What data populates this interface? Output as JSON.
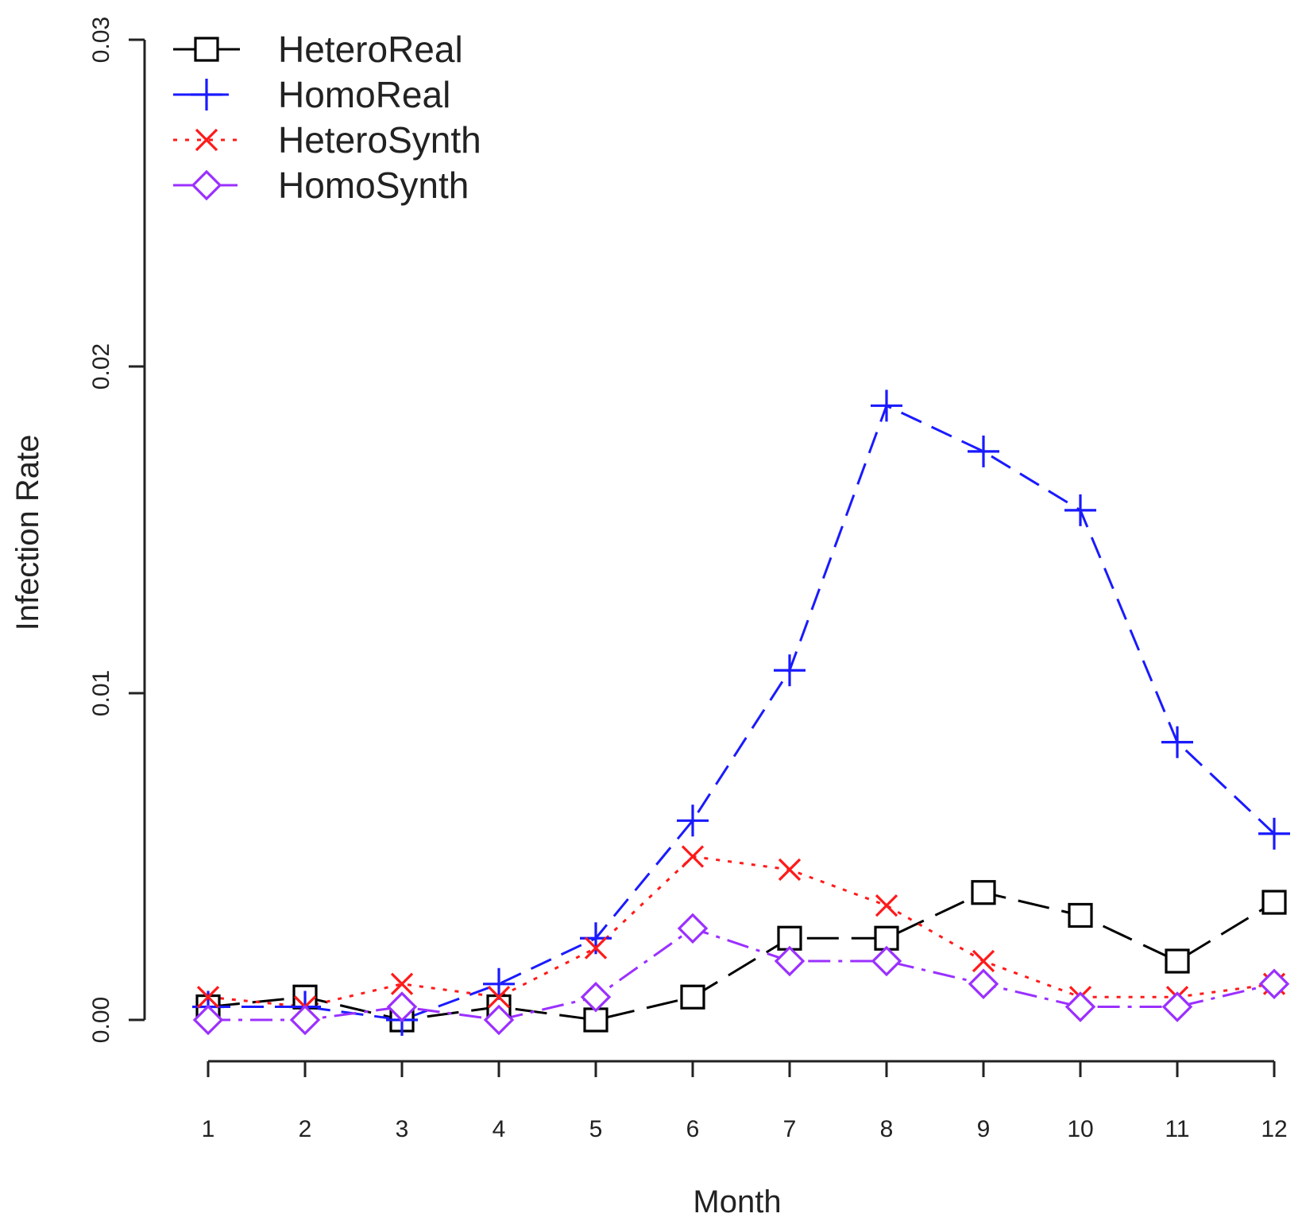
{
  "chart_data": {
    "type": "line",
    "title": "",
    "xlabel": "Month",
    "ylabel": "Infection Rate",
    "x": [
      1,
      2,
      3,
      4,
      5,
      6,
      7,
      8,
      9,
      10,
      11,
      12
    ],
    "x_tick_labels": [
      "1",
      "2",
      "3",
      "4",
      "5",
      "6",
      "7",
      "8",
      "9",
      "10",
      "11",
      "12"
    ],
    "ylim": [
      0,
      0.03
    ],
    "y_ticks": [
      0,
      0.01,
      0.02,
      0.03
    ],
    "y_tick_labels": [
      "0.00",
      "0.01",
      "0.02",
      "0.03"
    ],
    "grid": false,
    "legend_position": "top-left",
    "series": [
      {
        "name": "HeteroReal",
        "color": "#000000",
        "marker": "square",
        "dash": "long-dash",
        "values": [
          0.0004,
          0.0007,
          0.0,
          0.0004,
          0.0,
          0.0007,
          0.0025,
          0.0025,
          0.0039,
          0.0032,
          0.0018,
          0.0036
        ]
      },
      {
        "name": "HomoReal",
        "color": "#1a1aff",
        "marker": "plus",
        "dash": "dash",
        "values": [
          0.0004,
          0.0004,
          0.0,
          0.0011,
          0.0025,
          0.0061,
          0.0107,
          0.0188,
          0.0174,
          0.0156,
          0.0085,
          0.0057
        ]
      },
      {
        "name": "HeteroSynth",
        "color": "#ff1a1a",
        "marker": "cross",
        "dash": "dot",
        "values": [
          0.0007,
          0.0004,
          0.0011,
          0.0007,
          0.0022,
          0.005,
          0.0046,
          0.0035,
          0.0018,
          0.0007,
          0.0007,
          0.0011
        ]
      },
      {
        "name": "HomoSynth",
        "color": "#9b30ff",
        "marker": "diamond",
        "dash": "dash-dot",
        "values": [
          0.0,
          0.0,
          0.0004,
          0.0,
          0.0007,
          0.0028,
          0.0018,
          0.0018,
          0.0011,
          0.0004,
          0.0004,
          0.0011
        ]
      }
    ]
  }
}
